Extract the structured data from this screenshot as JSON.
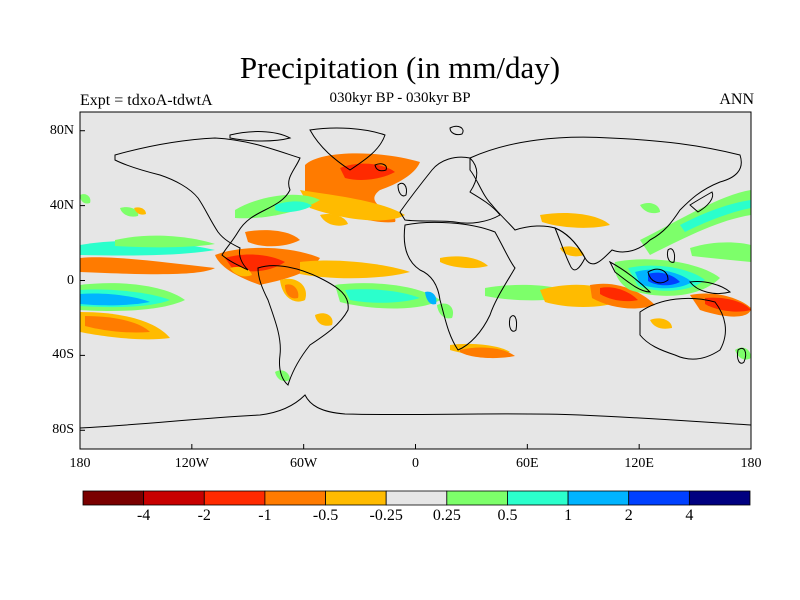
{
  "title": "Precipitation (in mm/day)",
  "subtitle": "030kyr BP - 030kyr BP",
  "left_label": "Expt = tdxoA-tdwtA",
  "right_label": "ANN",
  "lat_ticks": [
    {
      "lat": 80,
      "label": "80N"
    },
    {
      "lat": 40,
      "label": "40N"
    },
    {
      "lat": 0,
      "label": "0"
    },
    {
      "lat": -40,
      "label": "40S"
    },
    {
      "lat": -80,
      "label": "80S"
    }
  ],
  "lon_ticks": [
    {
      "lon": -180,
      "label": "180"
    },
    {
      "lon": -120,
      "label": "120W"
    },
    {
      "lon": -60,
      "label": "60W"
    },
    {
      "lon": 0,
      "label": "0"
    },
    {
      "lon": 60,
      "label": "60E"
    },
    {
      "lon": 120,
      "label": "120E"
    },
    {
      "lon": 180,
      "label": "180"
    }
  ],
  "colorbar": {
    "colors": [
      "#7a0000",
      "#c80000",
      "#ff2a00",
      "#ff7b00",
      "#ffbb00",
      "#e6e6e6",
      "#7dff6a",
      "#2bffcc",
      "#00b4ff",
      "#0040ff",
      "#000080"
    ],
    "labels": [
      "-4",
      "-2",
      "-1",
      "-0.5",
      "-0.25",
      "0.25",
      "0.5",
      "1",
      "2",
      "4"
    ]
  },
  "ocean_color": "#e6e6e6",
  "map_extent": {
    "lon": [
      -180,
      180
    ],
    "lat": [
      -90,
      90
    ]
  }
}
